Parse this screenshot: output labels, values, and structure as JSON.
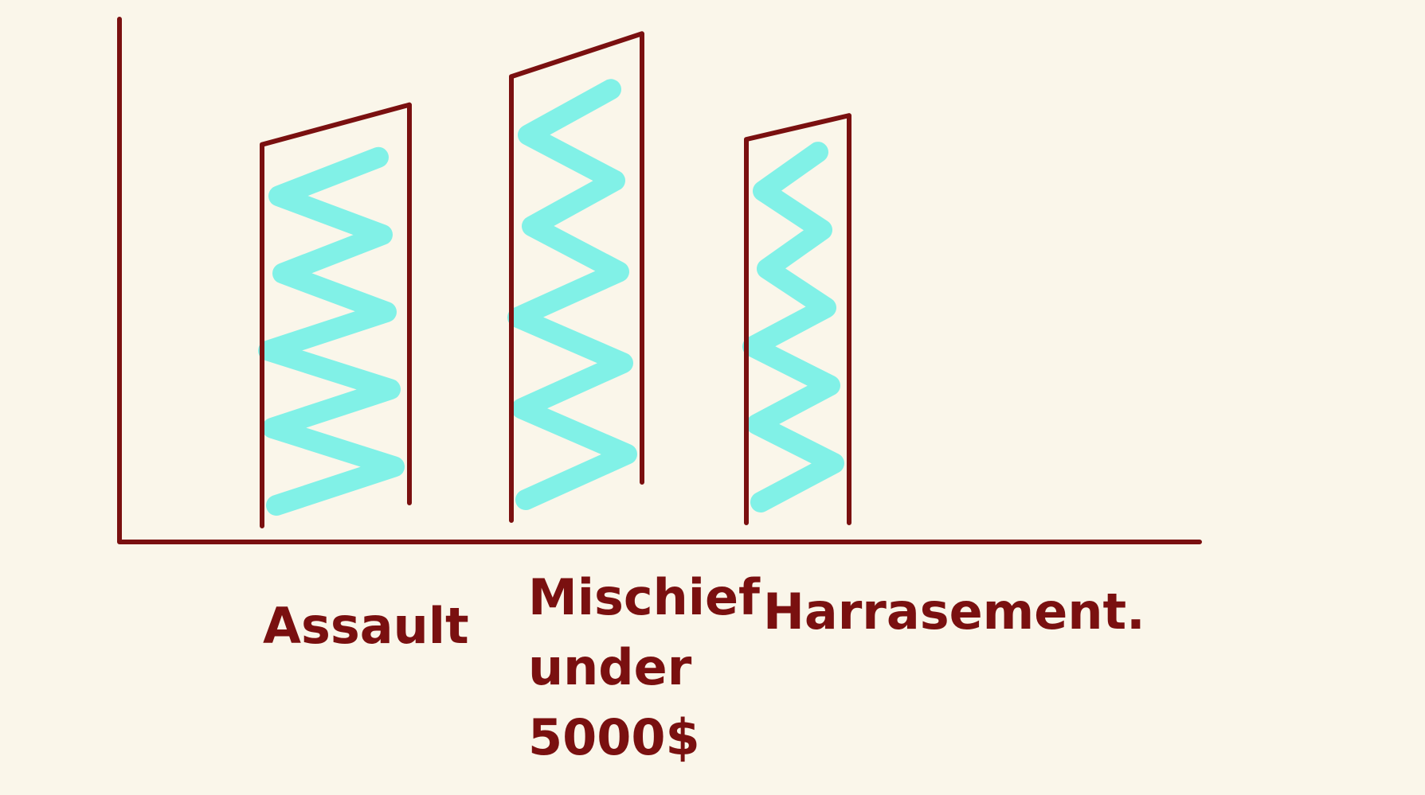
{
  "colors": {
    "background": "#faf6ea",
    "ink": "#7a1010",
    "fill": "#5ff0e6"
  },
  "chart_data": {
    "type": "bar",
    "style": "hand-drawn sketch, no numeric axis ticks",
    "title": "",
    "xlabel": "",
    "ylabel": "",
    "grid": false,
    "legend": "none",
    "ylim": [
      0,
      100
    ],
    "categories": [
      {
        "label": "Assault",
        "lines": [
          "Assault"
        ]
      },
      {
        "label": "Mischief under 5000$",
        "lines": [
          "Mischief",
          "under",
          "5000$"
        ]
      },
      {
        "label": "Harrasement.",
        "lines": [
          "Harrasement."
        ]
      }
    ],
    "values": [
      76,
      89,
      77
    ]
  }
}
